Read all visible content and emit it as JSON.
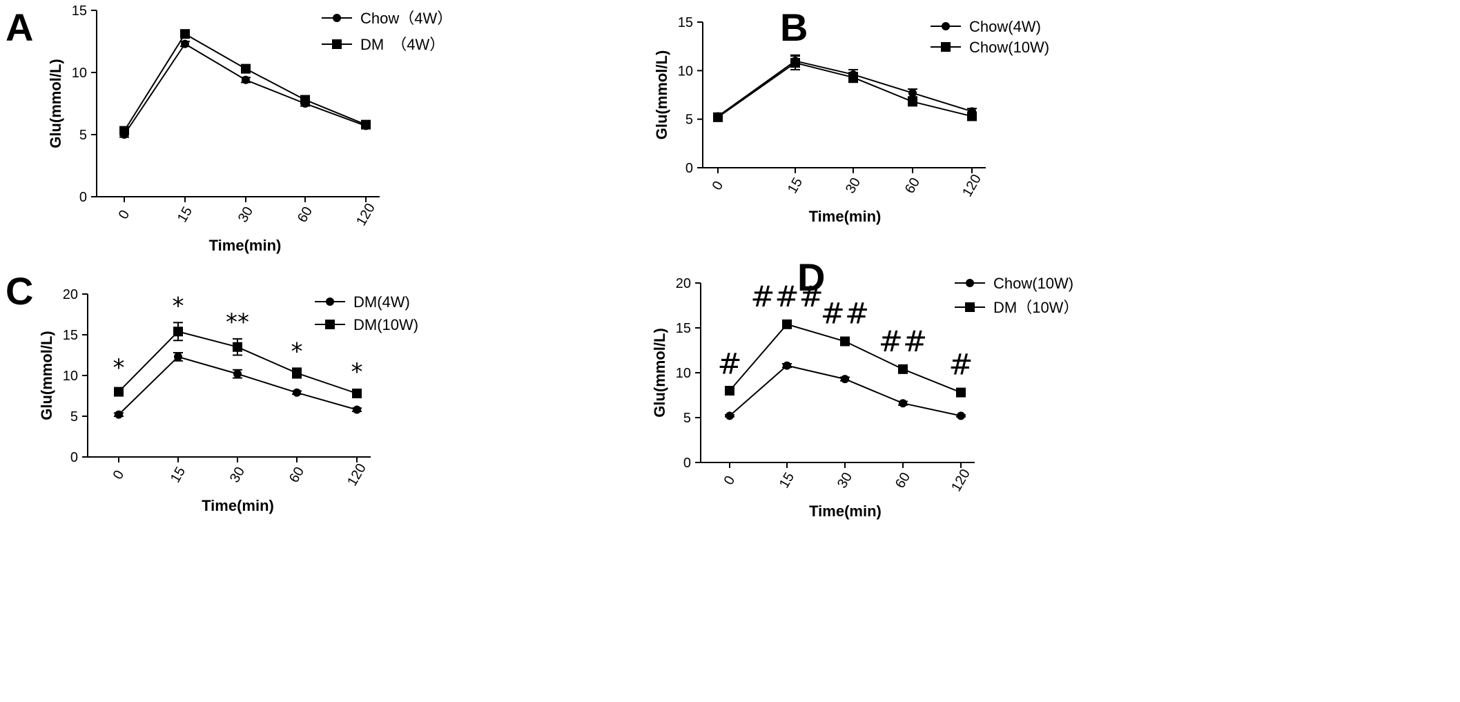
{
  "panels": [
    {
      "label": "A"
    },
    {
      "label": "B"
    },
    {
      "label": "C"
    },
    {
      "label": "D"
    }
  ],
  "chart_data": [
    {
      "panel": "A",
      "type": "line",
      "categories": [
        "0",
        "15",
        "30",
        "60",
        "120"
      ],
      "xlabel": "Time(min)",
      "ylabel": "Glu(mmol/L)",
      "ylim": [
        0,
        15
      ],
      "yticks": [
        0,
        5,
        10,
        15
      ],
      "legend_position": "top-right",
      "series": [
        {
          "name": "Chow（4W）",
          "marker": "circle",
          "values": [
            5.0,
            12.3,
            9.4,
            7.5,
            5.7
          ],
          "err": [
            0.2,
            0.2,
            0.2,
            0.2,
            0.1
          ]
        },
        {
          "name": "DM　（4W）",
          "marker": "square",
          "values": [
            5.3,
            13.1,
            10.3,
            7.8,
            5.8
          ],
          "err": [
            0.2,
            0.2,
            0.2,
            0.2,
            0.1
          ]
        }
      ],
      "annotations": []
    },
    {
      "panel": "B",
      "type": "line",
      "categories": [
        "0",
        "15",
        "30",
        "60",
        "120"
      ],
      "xlabel": "Time(min)",
      "ylabel": "Glu(mmol/L)",
      "ylim": [
        0,
        15
      ],
      "yticks": [
        0,
        5,
        10,
        15
      ],
      "legend_position": "top-right",
      "series": [
        {
          "name": "Chow(4W)",
          "marker": "circle",
          "values": [
            5.3,
            11.0,
            9.6,
            7.7,
            5.8
          ],
          "err": [
            0.3,
            0.6,
            0.5,
            0.4,
            0.3
          ]
        },
        {
          "name": "Chow(10W)",
          "marker": "square",
          "values": [
            5.2,
            10.8,
            9.3,
            6.8,
            5.3
          ],
          "err": [
            0.3,
            0.7,
            0.5,
            0.4,
            0.3
          ]
        }
      ],
      "annotations": []
    },
    {
      "panel": "C",
      "type": "line",
      "categories": [
        "0",
        "15",
        "30",
        "60",
        "120"
      ],
      "xlabel": "Time(min)",
      "ylabel": "Glu(mmol/L)",
      "ylim": [
        0,
        20
      ],
      "yticks": [
        0,
        5,
        10,
        15,
        20
      ],
      "legend_position": "top-right",
      "series": [
        {
          "name": "DM(4W)",
          "marker": "circle",
          "values": [
            5.2,
            12.3,
            10.2,
            7.9,
            5.8
          ],
          "err": [
            0.2,
            0.5,
            0.5,
            0.2,
            0.2
          ]
        },
        {
          "name": "DM(10W)",
          "marker": "square",
          "values": [
            8.0,
            15.4,
            13.5,
            10.3,
            7.8
          ],
          "err": [
            0.4,
            1.1,
            1.0,
            0.6,
            0.5
          ]
        }
      ],
      "annotations": [
        {
          "x": "0",
          "y": 10.0,
          "text": "*"
        },
        {
          "x": "15",
          "y": 17.6,
          "text": "*"
        },
        {
          "x": "30",
          "y": 15.6,
          "text": "**"
        },
        {
          "x": "60",
          "y": 12.0,
          "text": "*"
        },
        {
          "x": "120",
          "y": 9.5,
          "text": "*"
        }
      ]
    },
    {
      "panel": "D",
      "type": "line",
      "categories": [
        "0",
        "15",
        "30",
        "60",
        "120"
      ],
      "xlabel": "Time(min)",
      "ylabel": "Glu(mmol/L)",
      "ylim": [
        0,
        20
      ],
      "yticks": [
        0,
        5,
        10,
        15,
        20
      ],
      "legend_position": "top-right",
      "series": [
        {
          "name": "Chow(10W)",
          "marker": "circle",
          "values": [
            5.2,
            10.8,
            9.3,
            6.6,
            5.2
          ],
          "err": [
            0.1,
            0.2,
            0.2,
            0.2,
            0.1
          ]
        },
        {
          "name": "DM（10W）",
          "marker": "square",
          "values": [
            8.0,
            15.4,
            13.5,
            10.4,
            7.8
          ],
          "err": [
            0.3,
            0.2,
            0.2,
            0.2,
            0.2
          ]
        }
      ],
      "annotations": [
        {
          "x": "0",
          "y": 9.9,
          "text": "#"
        },
        {
          "x": "15",
          "y": 17.4,
          "text": "###"
        },
        {
          "x": "30",
          "y": 15.5,
          "text": "##"
        },
        {
          "x": "60",
          "y": 12.4,
          "text": "##"
        },
        {
          "x": "120",
          "y": 9.8,
          "text": "#"
        }
      ]
    }
  ]
}
